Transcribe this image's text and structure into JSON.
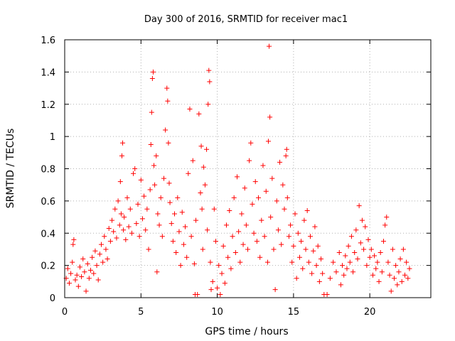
{
  "chart_data": {
    "type": "scatter",
    "title": "Day 300 of 2016, SRMTID for receiver mac1",
    "xlabel": "GPS time / hours",
    "ylabel": "SRMTID / TECUs",
    "xlim": [
      0,
      24
    ],
    "ylim": [
      0,
      1.6
    ],
    "xticks": [
      0,
      5,
      10,
      15,
      20
    ],
    "xtick_labels": [
      "0",
      "5",
      "10",
      "15",
      "20"
    ],
    "yticks": [
      0,
      0.2,
      0.4,
      0.6,
      0.8,
      1.0,
      1.2,
      1.4,
      1.6
    ],
    "ytick_labels": [
      "0",
      "0.2",
      "0.4",
      "0.6",
      "0.8",
      "1",
      "1.2",
      "1.4",
      "1.6"
    ],
    "grid": true,
    "marker": "+",
    "marker_color": "#ff0000",
    "series": [
      {
        "name": "SRMTID",
        "points": [
          [
            0.1,
            0.12
          ],
          [
            0.2,
            0.18
          ],
          [
            0.3,
            0.09
          ],
          [
            0.4,
            0.15
          ],
          [
            0.5,
            0.22
          ],
          [
            0.55,
            0.33
          ],
          [
            0.6,
            0.36
          ],
          [
            0.7,
            0.11
          ],
          [
            0.8,
            0.14
          ],
          [
            0.9,
            0.07
          ],
          [
            1.0,
            0.19
          ],
          [
            1.1,
            0.13
          ],
          [
            1.2,
            0.24
          ],
          [
            1.3,
            0.16
          ],
          [
            1.4,
            0.04
          ],
          [
            1.5,
            0.21
          ],
          [
            1.6,
            0.12
          ],
          [
            1.7,
            0.17
          ],
          [
            1.8,
            0.25
          ],
          [
            1.9,
            0.15
          ],
          [
            2.0,
            0.29
          ],
          [
            2.1,
            0.2
          ],
          [
            2.2,
            0.11
          ],
          [
            2.3,
            0.27
          ],
          [
            2.4,
            0.33
          ],
          [
            2.5,
            0.22
          ],
          [
            2.6,
            0.38
          ],
          [
            2.7,
            0.3
          ],
          [
            2.8,
            0.24
          ],
          [
            2.9,
            0.43
          ],
          [
            3.0,
            0.35
          ],
          [
            3.1,
            0.48
          ],
          [
            3.2,
            0.41
          ],
          [
            3.3,
            0.55
          ],
          [
            3.4,
            0.37
          ],
          [
            3.5,
            0.6
          ],
          [
            3.6,
            0.45
          ],
          [
            3.65,
            0.72
          ],
          [
            3.7,
            0.52
          ],
          [
            3.75,
            0.88
          ],
          [
            3.8,
            0.96
          ],
          [
            3.85,
            0.42
          ],
          [
            3.9,
            0.5
          ],
          [
            4.0,
            0.36
          ],
          [
            4.1,
            0.62
          ],
          [
            4.2,
            0.44
          ],
          [
            4.3,
            0.55
          ],
          [
            4.4,
            0.4
          ],
          [
            4.5,
            0.77
          ],
          [
            4.6,
            0.8
          ],
          [
            4.7,
            0.46
          ],
          [
            4.8,
            0.58
          ],
          [
            4.9,
            0.38
          ],
          [
            5.0,
            0.73
          ],
          [
            5.1,
            0.49
          ],
          [
            5.2,
            0.63
          ],
          [
            5.3,
            0.42
          ],
          [
            5.4,
            0.55
          ],
          [
            5.5,
            0.3
          ],
          [
            5.6,
            0.67
          ],
          [
            5.65,
            0.95
          ],
          [
            5.7,
            1.15
          ],
          [
            5.75,
            1.36
          ],
          [
            5.8,
            1.4
          ],
          [
            5.85,
            0.82
          ],
          [
            5.9,
            0.7
          ],
          [
            6.0,
            0.88
          ],
          [
            6.05,
            0.16
          ],
          [
            6.1,
            0.52
          ],
          [
            6.2,
            0.45
          ],
          [
            6.3,
            0.62
          ],
          [
            6.4,
            0.38
          ],
          [
            6.5,
            0.74
          ],
          [
            6.6,
            1.04
          ],
          [
            6.7,
            1.3
          ],
          [
            6.75,
            1.22
          ],
          [
            6.8,
            0.96
          ],
          [
            6.85,
            0.71
          ],
          [
            6.9,
            0.59
          ],
          [
            7.0,
            0.46
          ],
          [
            7.1,
            0.35
          ],
          [
            7.2,
            0.52
          ],
          [
            7.3,
            0.28
          ],
          [
            7.4,
            0.62
          ],
          [
            7.5,
            0.41
          ],
          [
            7.6,
            0.2
          ],
          [
            7.7,
            0.53
          ],
          [
            7.8,
            0.33
          ],
          [
            7.9,
            0.44
          ],
          [
            8.0,
            0.25
          ],
          [
            8.1,
            0.77
          ],
          [
            8.2,
            1.17
          ],
          [
            8.3,
            0.38
          ],
          [
            8.4,
            0.85
          ],
          [
            8.5,
            0.21
          ],
          [
            8.55,
            0.02
          ],
          [
            8.6,
            0.48
          ],
          [
            8.7,
            0.02
          ],
          [
            8.8,
            1.14
          ],
          [
            8.9,
            0.65
          ],
          [
            8.95,
            0.94
          ],
          [
            9.0,
            0.55
          ],
          [
            9.05,
            0.3
          ],
          [
            9.1,
            0.81
          ],
          [
            9.2,
            0.7
          ],
          [
            9.3,
            0.92
          ],
          [
            9.35,
            0.42
          ],
          [
            9.4,
            1.2
          ],
          [
            9.45,
            1.41
          ],
          [
            9.5,
            1.34
          ],
          [
            9.55,
            0.22
          ],
          [
            9.6,
            0.05
          ],
          [
            9.7,
            0.1
          ],
          [
            9.8,
            0.55
          ],
          [
            9.9,
            0.35
          ],
          [
            10.0,
            0.06
          ],
          [
            10.1,
            0.2
          ],
          [
            10.2,
            0.02
          ],
          [
            10.3,
            0.15
          ],
          [
            10.4,
            0.32
          ],
          [
            10.5,
            0.09
          ],
          [
            10.6,
            0.45
          ],
          [
            10.7,
            0.25
          ],
          [
            10.8,
            0.54
          ],
          [
            10.9,
            0.18
          ],
          [
            11.0,
            0.38
          ],
          [
            11.1,
            0.62
          ],
          [
            11.2,
            0.28
          ],
          [
            11.3,
            0.75
          ],
          [
            11.4,
            0.41
          ],
          [
            11.5,
            0.22
          ],
          [
            11.6,
            0.52
          ],
          [
            11.7,
            0.33
          ],
          [
            11.8,
            0.68
          ],
          [
            11.9,
            0.45
          ],
          [
            12.0,
            0.3
          ],
          [
            12.1,
            0.85
          ],
          [
            12.2,
            0.96
          ],
          [
            12.3,
            0.58
          ],
          [
            12.4,
            0.4
          ],
          [
            12.5,
            0.72
          ],
          [
            12.6,
            0.35
          ],
          [
            12.7,
            0.62
          ],
          [
            12.8,
            0.25
          ],
          [
            12.9,
            0.48
          ],
          [
            13.0,
            0.82
          ],
          [
            13.1,
            0.38
          ],
          [
            13.2,
            0.66
          ],
          [
            13.3,
            0.22
          ],
          [
            13.35,
            0.97
          ],
          [
            13.4,
            1.56
          ],
          [
            13.45,
            1.12
          ],
          [
            13.5,
            0.5
          ],
          [
            13.6,
            0.74
          ],
          [
            13.7,
            0.3
          ],
          [
            13.8,
            0.05
          ],
          [
            13.9,
            0.6
          ],
          [
            14.0,
            0.42
          ],
          [
            14.1,
            0.84
          ],
          [
            14.2,
            0.33
          ],
          [
            14.3,
            0.7
          ],
          [
            14.4,
            0.55
          ],
          [
            14.5,
            0.88
          ],
          [
            14.55,
            0.92
          ],
          [
            14.6,
            0.62
          ],
          [
            14.7,
            0.38
          ],
          [
            14.8,
            0.45
          ],
          [
            14.9,
            0.22
          ],
          [
            15.0,
            0.32
          ],
          [
            15.1,
            0.52
          ],
          [
            15.2,
            0.12
          ],
          [
            15.3,
            0.4
          ],
          [
            15.4,
            0.25
          ],
          [
            15.5,
            0.35
          ],
          [
            15.6,
            0.18
          ],
          [
            15.7,
            0.48
          ],
          [
            15.8,
            0.3
          ],
          [
            15.9,
            0.54
          ],
          [
            16.0,
            0.22
          ],
          [
            16.1,
            0.38
          ],
          [
            16.2,
            0.15
          ],
          [
            16.3,
            0.29
          ],
          [
            16.4,
            0.44
          ],
          [
            16.5,
            0.2
          ],
          [
            16.6,
            0.32
          ],
          [
            16.7,
            0.1
          ],
          [
            16.8,
            0.24
          ],
          [
            16.9,
            0.15
          ],
          [
            17.0,
            0.02
          ],
          [
            17.2,
            0.02
          ],
          [
            17.4,
            0.12
          ],
          [
            17.6,
            0.22
          ],
          [
            17.8,
            0.16
          ],
          [
            18.0,
            0.28
          ],
          [
            18.1,
            0.08
          ],
          [
            18.2,
            0.2
          ],
          [
            18.3,
            0.14
          ],
          [
            18.4,
            0.26
          ],
          [
            18.5,
            0.18
          ],
          [
            18.6,
            0.32
          ],
          [
            18.7,
            0.22
          ],
          [
            18.8,
            0.38
          ],
          [
            18.9,
            0.16
          ],
          [
            19.0,
            0.28
          ],
          [
            19.1,
            0.42
          ],
          [
            19.2,
            0.24
          ],
          [
            19.3,
            0.57
          ],
          [
            19.4,
            0.34
          ],
          [
            19.5,
            0.48
          ],
          [
            19.6,
            0.3
          ],
          [
            19.7,
            0.44
          ],
          [
            19.8,
            0.2
          ],
          [
            19.9,
            0.36
          ],
          [
            20.0,
            0.25
          ],
          [
            20.1,
            0.3
          ],
          [
            20.2,
            0.14
          ],
          [
            20.3,
            0.26
          ],
          [
            20.4,
            0.18
          ],
          [
            20.5,
            0.22
          ],
          [
            20.6,
            0.1
          ],
          [
            20.7,
            0.28
          ],
          [
            20.8,
            0.16
          ],
          [
            20.9,
            0.35
          ],
          [
            21.0,
            0.45
          ],
          [
            21.1,
            0.5
          ],
          [
            21.2,
            0.22
          ],
          [
            21.3,
            0.14
          ],
          [
            21.4,
            0.04
          ],
          [
            21.5,
            0.3
          ],
          [
            21.6,
            0.12
          ],
          [
            21.7,
            0.2
          ],
          [
            21.8,
            0.08
          ],
          [
            21.9,
            0.16
          ],
          [
            22.0,
            0.24
          ],
          [
            22.1,
            0.1
          ],
          [
            22.2,
            0.3
          ],
          [
            22.3,
            0.14
          ],
          [
            22.4,
            0.22
          ],
          [
            22.5,
            0.12
          ],
          [
            22.6,
            0.18
          ]
        ]
      }
    ]
  }
}
